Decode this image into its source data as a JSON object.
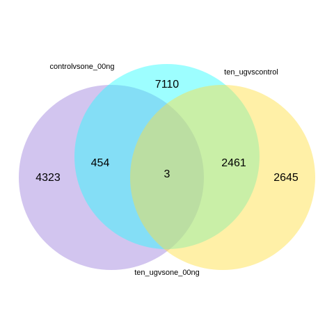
{
  "diagram": {
    "type": "venn",
    "sets": [
      {
        "id": "a",
        "label": "controlvsone_00ng",
        "only_count": "4323",
        "color": "#9b7fdb"
      },
      {
        "id": "b",
        "label": "ten_ugvscontrol",
        "only_count": "7110",
        "color": "#26fdff"
      },
      {
        "id": "c",
        "label": "ten_ugvsone_00ng",
        "only_count": "2645",
        "color": "#ffde3c"
      }
    ],
    "intersections": {
      "a_b": "454",
      "b_c": "2461",
      "a_b_c": "3"
    }
  }
}
